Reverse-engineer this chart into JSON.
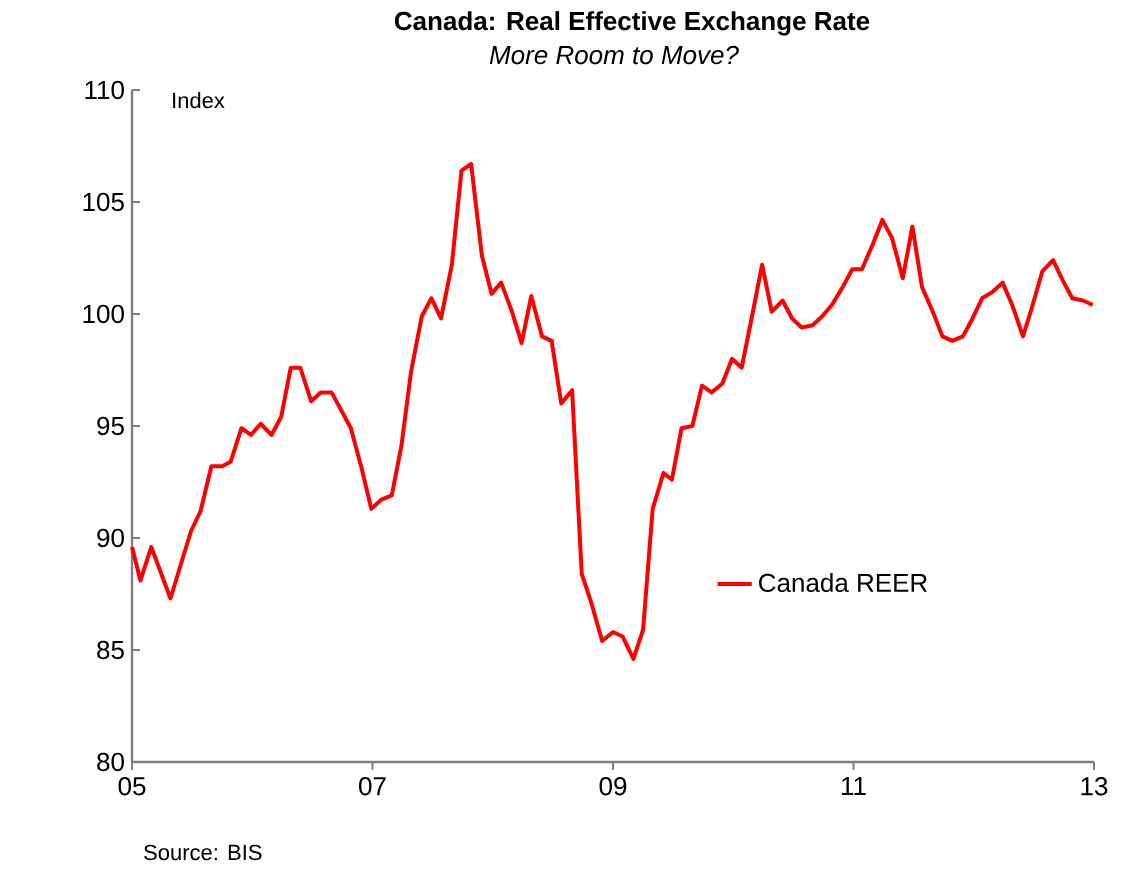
{
  "chart_data": {
    "type": "line",
    "title": "Canada: Real Effective Exchange Rate",
    "subtitle": "More Room to Move?",
    "ylabel": "Index",
    "annotations": [
      "Source: BIS"
    ],
    "xlim": [
      2005,
      2013
    ],
    "xticks": [
      {
        "value": 2005,
        "label": "05"
      },
      {
        "value": 2007,
        "label": "07"
      },
      {
        "value": 2009,
        "label": "09"
      },
      {
        "value": 2011,
        "label": "11"
      },
      {
        "value": 2013,
        "label": "13"
      }
    ],
    "ylim": [
      80,
      110
    ],
    "yticks": [
      80,
      85,
      90,
      95,
      100,
      105,
      110
    ],
    "grid": false,
    "legend": "right",
    "marker": "none",
    "line_style": "solid",
    "series": [
      {
        "name": "Canada REER",
        "color": "#ff0000",
        "x": [
          2005.0,
          2005.07,
          2005.16,
          2005.32,
          2005.49,
          2005.57,
          2005.66,
          2005.75,
          2005.82,
          2005.91,
          2005.99,
          2006.07,
          2006.16,
          2006.24,
          2006.32,
          2006.4,
          2006.49,
          2006.57,
          2006.66,
          2006.74,
          2006.82,
          2006.91,
          2006.99,
          2007.07,
          2007.16,
          2007.24,
          2007.32,
          2007.41,
          2007.49,
          2007.57,
          2007.66,
          2007.74,
          2007.82,
          2007.91,
          2007.99,
          2008.07,
          2008.16,
          2008.24,
          2008.32,
          2008.41,
          2008.49,
          2008.57,
          2008.66,
          2008.74,
          2008.82,
          2008.91,
          2009.0,
          2009.08,
          2009.17,
          2009.25,
          2009.33,
          2009.42,
          2009.49,
          2009.57,
          2009.66,
          2009.74,
          2009.82,
          2009.91,
          2009.99,
          2010.07,
          2010.16,
          2010.24,
          2010.32,
          2010.41,
          2010.49,
          2010.57,
          2010.66,
          2010.74,
          2010.82,
          2010.91,
          2010.99,
          2011.07,
          2011.16,
          2011.24,
          2011.32,
          2011.41,
          2011.49,
          2011.57,
          2011.66,
          2011.74,
          2011.82,
          2011.91,
          2011.99,
          2012.07,
          2012.16,
          2012.24,
          2012.32,
          2012.41,
          2012.49,
          2012.57,
          2012.66,
          2012.74,
          2012.82,
          2012.91,
          2012.99
        ],
        "values": [
          89.6,
          88.1,
          89.6,
          87.3,
          90.3,
          91.2,
          93.2,
          93.2,
          93.4,
          94.9,
          94.6,
          95.1,
          94.6,
          95.4,
          97.6,
          97.6,
          96.1,
          96.5,
          96.5,
          95.7,
          94.9,
          93.1,
          91.3,
          91.7,
          91.9,
          94.1,
          97.4,
          99.9,
          100.7,
          99.8,
          102.2,
          106.4,
          106.7,
          102.6,
          100.9,
          101.4,
          100.1,
          98.7,
          100.8,
          99.0,
          98.8,
          96.0,
          96.6,
          88.4,
          87.1,
          85.4,
          85.8,
          85.6,
          84.6,
          85.9,
          91.3,
          92.9,
          92.6,
          94.9,
          95.0,
          96.8,
          96.5,
          96.9,
          98.0,
          97.6,
          100.0,
          102.2,
          100.1,
          100.6,
          99.8,
          99.4,
          99.5,
          99.9,
          100.4,
          101.2,
          102.0,
          102.0,
          103.1,
          104.2,
          103.4,
          101.6,
          103.9,
          101.2,
          100.1,
          99.0,
          98.8,
          99.0,
          99.8,
          100.7,
          101.0,
          101.4,
          100.4,
          99.0,
          100.4,
          101.9,
          102.4,
          101.5,
          100.7,
          100.6,
          100.4
        ]
      }
    ]
  }
}
